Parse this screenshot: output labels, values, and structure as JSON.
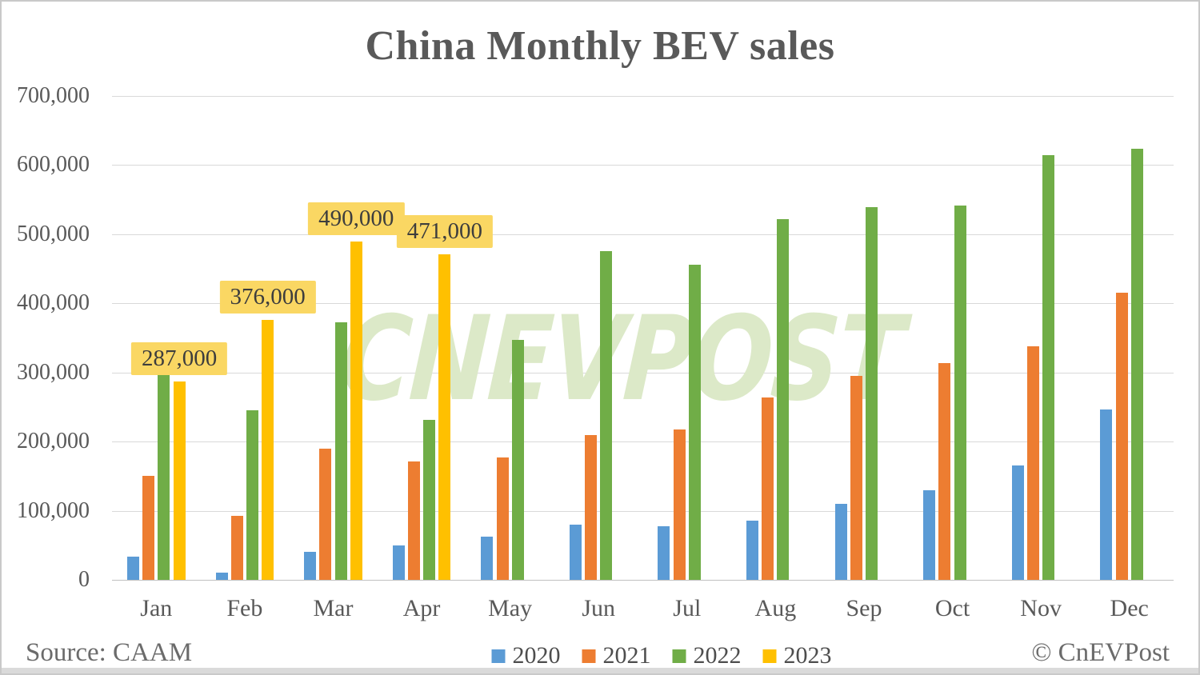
{
  "title": "China Monthly BEV sales",
  "watermark": "CNEVPOST",
  "footer": {
    "source": "Source: CAAM",
    "copyright": "© CnEVPost"
  },
  "colors": {
    "series_2020": "#5B9BD5",
    "series_2021": "#ED7D31",
    "series_2022": "#70AD47",
    "series_2023": "#FFC000",
    "annotation_box": "#FAD763",
    "gridline": "#D9D9D9",
    "text": "#595959",
    "watermark": "#DCE9C8"
  },
  "chart_data": {
    "type": "bar",
    "title": "China Monthly BEV sales",
    "xlabel": "",
    "ylabel": "",
    "grid": true,
    "legend_position": "bottom",
    "ylim": [
      0,
      700000
    ],
    "ytick_step": 100000,
    "ytick_labels": [
      "0",
      "100,000",
      "200,000",
      "300,000",
      "400,000",
      "500,000",
      "600,000",
      "700,000"
    ],
    "categories": [
      "Jan",
      "Feb",
      "Mar",
      "Apr",
      "May",
      "Jun",
      "Jul",
      "Aug",
      "Sep",
      "Oct",
      "Nov",
      "Dec"
    ],
    "series": [
      {
        "name": "2020",
        "color": "#5B9BD5",
        "values": [
          33000,
          10000,
          40000,
          50000,
          62000,
          80000,
          77000,
          86000,
          110000,
          130000,
          165000,
          247000
        ]
      },
      {
        "name": "2021",
        "color": "#ED7D31",
        "values": [
          150000,
          92000,
          190000,
          171000,
          177000,
          210000,
          218000,
          264000,
          295000,
          314000,
          338000,
          415000
        ]
      },
      {
        "name": "2022",
        "color": "#70AD47",
        "values": [
          300000,
          245000,
          373000,
          231000,
          347000,
          475000,
          456000,
          522000,
          539000,
          541000,
          614000,
          624000
        ]
      },
      {
        "name": "2023",
        "color": "#FFC000",
        "values": [
          287000,
          376000,
          490000,
          471000,
          null,
          null,
          null,
          null,
          null,
          null,
          null,
          null
        ]
      }
    ],
    "annotations": [
      {
        "series": "2023",
        "category": "Jan",
        "text": "287,000"
      },
      {
        "series": "2023",
        "category": "Feb",
        "text": "376,000"
      },
      {
        "series": "2023",
        "category": "Mar",
        "text": "490,000"
      },
      {
        "series": "2023",
        "category": "Apr",
        "text": "471,000"
      }
    ]
  }
}
